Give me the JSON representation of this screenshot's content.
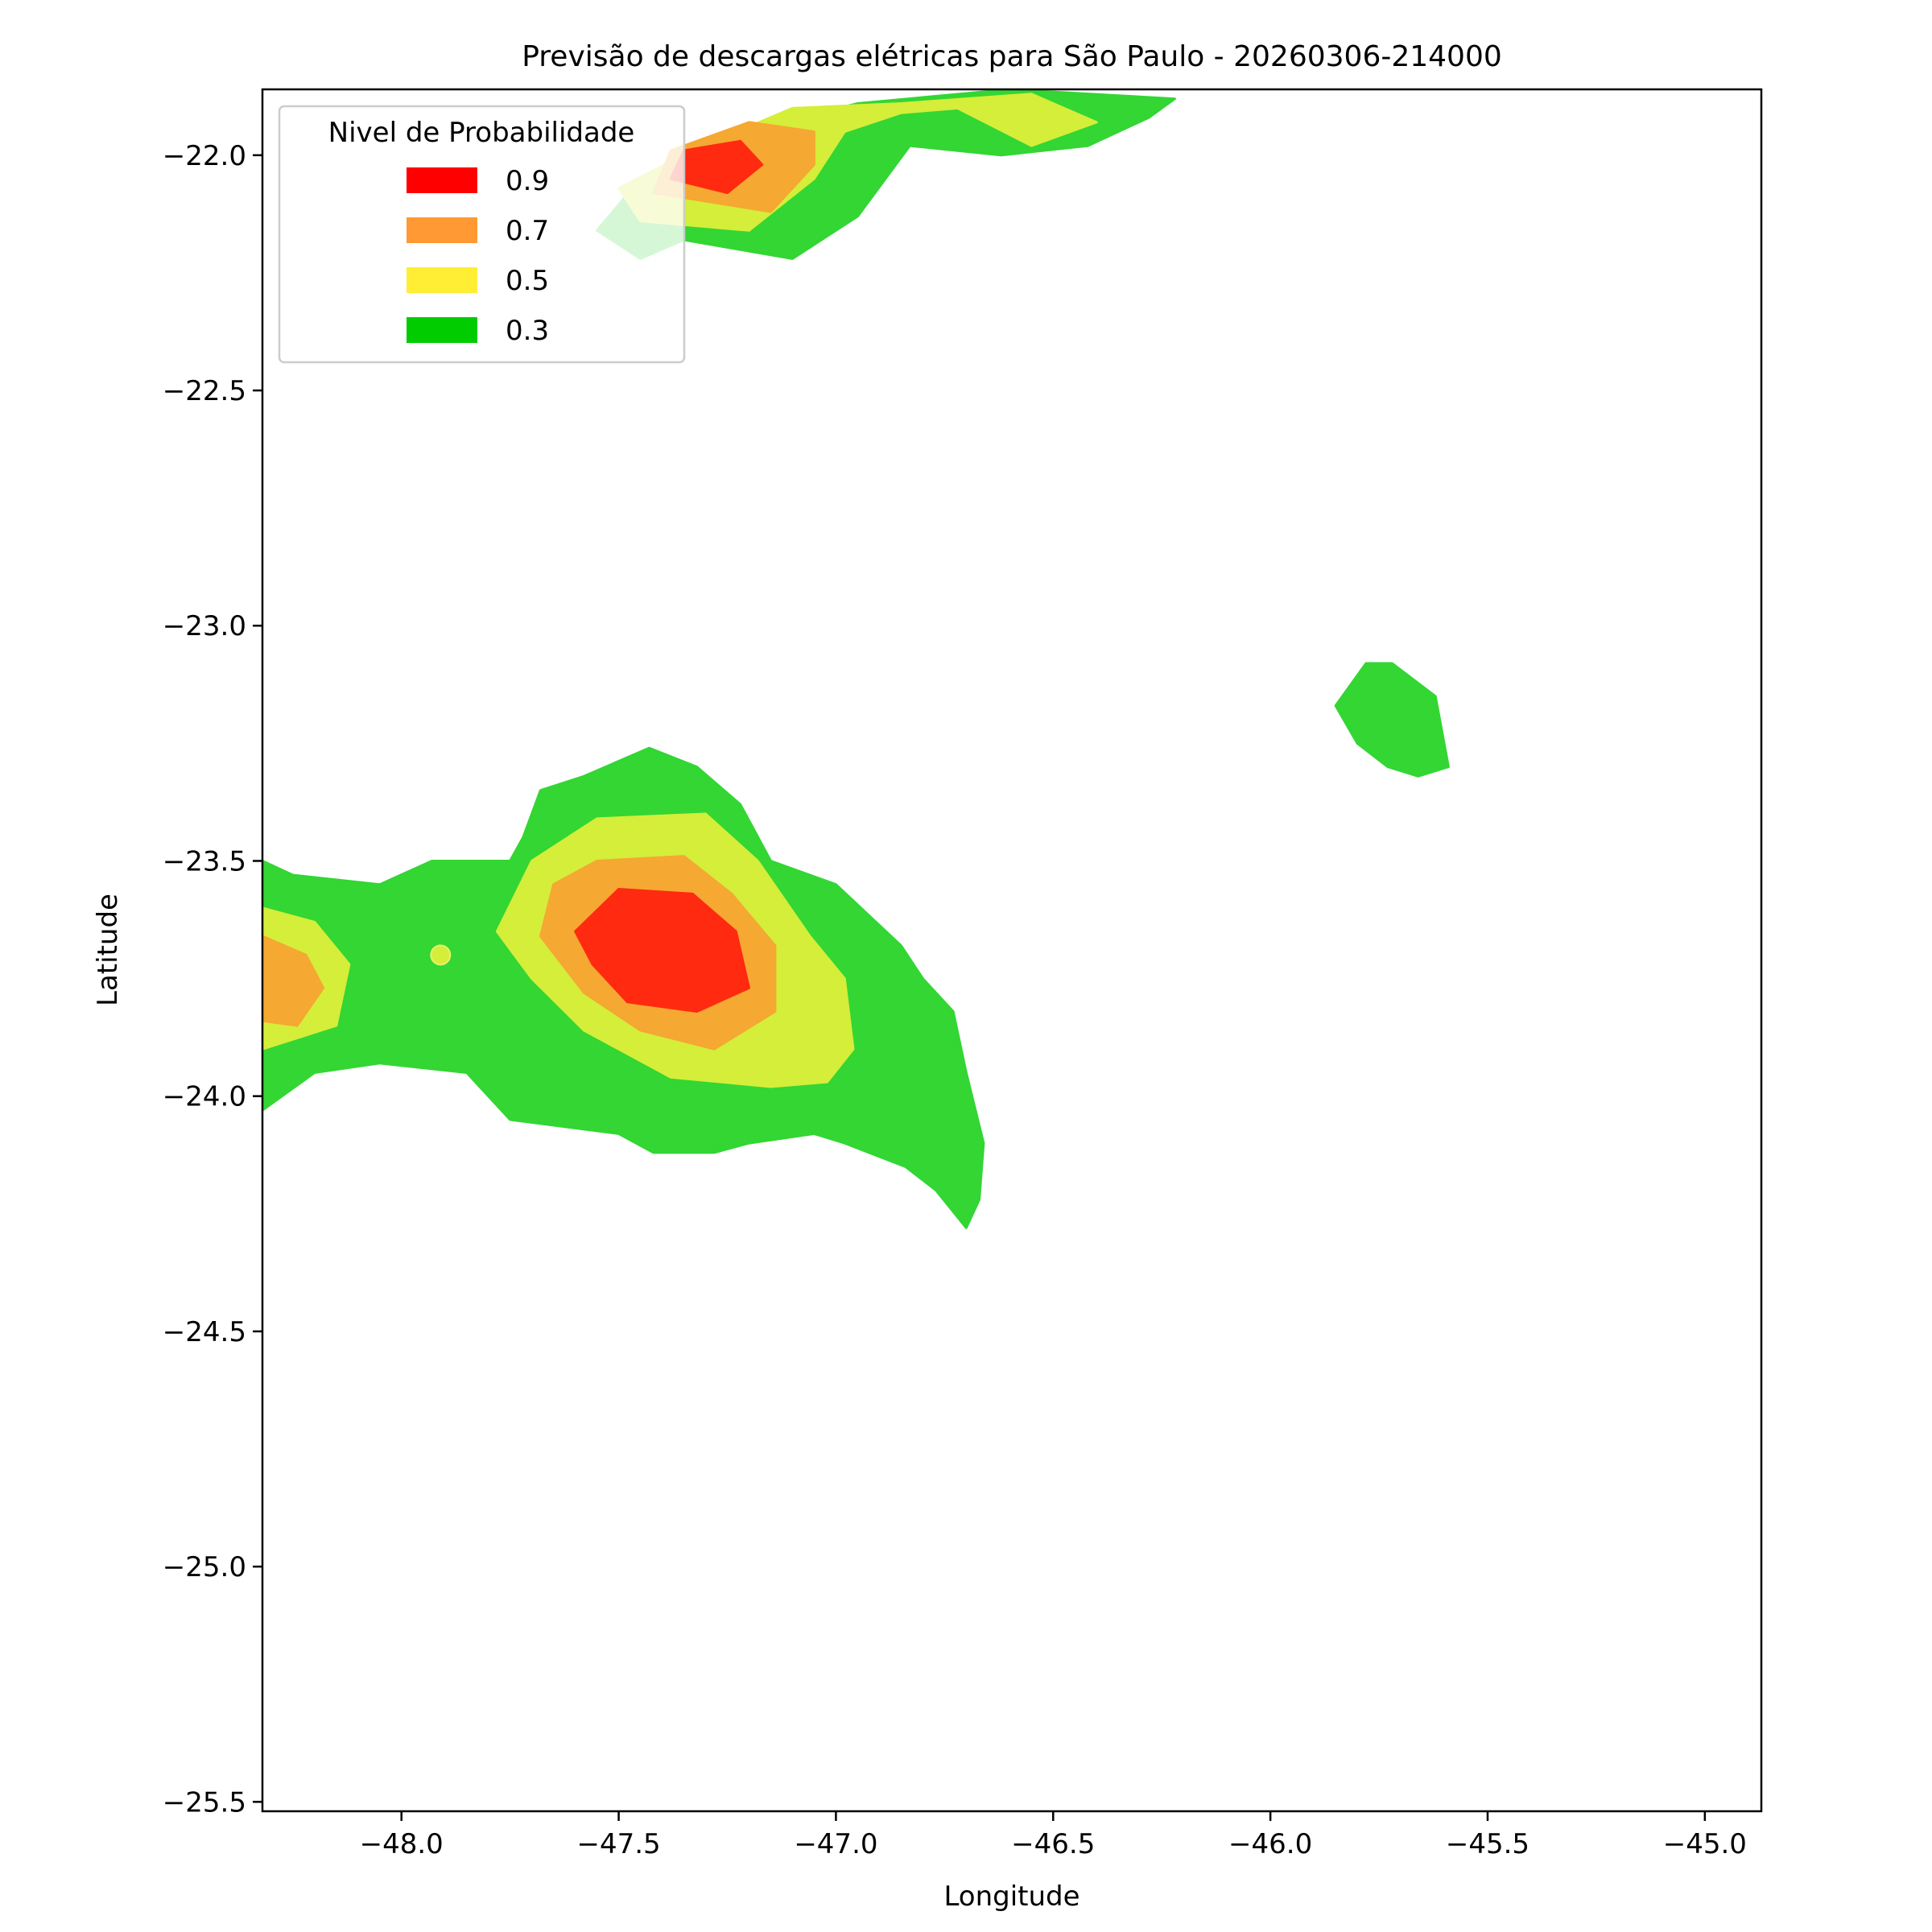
{
  "chart_data": {
    "type": "filled-contour",
    "title": "Previsão de descargas elétricas para São Paulo - 20260306-214000",
    "xlabel": "Longitude",
    "ylabel": "Latitude",
    "xlim": [
      -48.32,
      -44.87
    ],
    "ylim": [
      -25.52,
      -21.86
    ],
    "xticks": [
      -48.0,
      -47.5,
      -47.0,
      -46.5,
      -46.0,
      -45.5,
      -45.0
    ],
    "xtick_labels": [
      "−48.0",
      "−47.5",
      "−47.0",
      "−46.5",
      "−46.0",
      "−45.5",
      "−45.0"
    ],
    "yticks": [
      -22.0,
      -22.5,
      -23.0,
      -23.5,
      -24.0,
      -24.5,
      -25.0,
      -25.5
    ],
    "ytick_labels": [
      "−22.0",
      "−22.5",
      "−23.0",
      "−23.5",
      "−24.0",
      "−24.5",
      "−25.0",
      "−25.5"
    ],
    "legend": {
      "title": "Nivel de Probabilidade",
      "position": "upper-left",
      "entries": [
        {
          "label": "0.9",
          "color": "#ff0000"
        },
        {
          "label": "0.7",
          "color": "#ff9933"
        },
        {
          "label": "0.5",
          "color": "#ffee33"
        },
        {
          "label": "0.3",
          "color": "#00cc00"
        }
      ]
    },
    "fill_colors": {
      "0.3": "#33d633",
      "0.5": "#d4ee3a",
      "0.7": "#f5a832",
      "0.9": "#ff2a10"
    },
    "levels": [
      {
        "level": "0.3",
        "regions": [
          [
            [
              -48.32,
              -23.5
            ],
            [
              -48.25,
              -23.53
            ],
            [
              -48.05,
              -23.55
            ],
            [
              -47.93,
              -23.5
            ],
            [
              -47.75,
              -23.5
            ],
            [
              -47.72,
              -23.45
            ],
            [
              -47.68,
              -23.35
            ],
            [
              -47.58,
              -23.32
            ],
            [
              -47.43,
              -23.26
            ],
            [
              -47.32,
              -23.3
            ],
            [
              -47.22,
              -23.38
            ],
            [
              -47.15,
              -23.5
            ],
            [
              -47.0,
              -23.55
            ],
            [
              -46.85,
              -23.68
            ],
            [
              -46.8,
              -23.75
            ],
            [
              -46.73,
              -23.82
            ],
            [
              -46.7,
              -23.95
            ],
            [
              -46.66,
              -24.1
            ],
            [
              -46.67,
              -24.22
            ],
            [
              -46.7,
              -24.28
            ],
            [
              -46.77,
              -24.2
            ],
            [
              -46.84,
              -24.15
            ],
            [
              -46.98,
              -24.1
            ],
            [
              -47.05,
              -24.08
            ],
            [
              -47.2,
              -24.1
            ],
            [
              -47.28,
              -24.12
            ],
            [
              -47.42,
              -24.12
            ],
            [
              -47.5,
              -24.08
            ],
            [
              -47.75,
              -24.05
            ],
            [
              -47.85,
              -23.95
            ],
            [
              -48.05,
              -23.93
            ],
            [
              -48.2,
              -23.95
            ],
            [
              -48.32,
              -24.03
            ]
          ],
          [
            [
              -47.35,
              -22.18
            ],
            [
              -47.1,
              -22.22
            ],
            [
              -46.95,
              -22.13
            ],
            [
              -46.83,
              -21.98
            ],
            [
              -46.62,
              -22.0
            ],
            [
              -46.42,
              -21.98
            ],
            [
              -46.28,
              -21.92
            ],
            [
              -46.22,
              -21.88
            ],
            [
              -46.6,
              -21.86
            ],
            [
              -46.95,
              -21.89
            ],
            [
              -47.3,
              -21.97
            ],
            [
              -47.45,
              -22.05
            ],
            [
              -47.55,
              -22.16
            ],
            [
              -47.45,
              -22.22
            ]
          ],
          [
            [
              -45.72,
              -23.08
            ],
            [
              -45.62,
              -23.15
            ],
            [
              -45.59,
              -23.3
            ],
            [
              -45.66,
              -23.32
            ],
            [
              -45.73,
              -23.3
            ],
            [
              -45.8,
              -23.25
            ],
            [
              -45.85,
              -23.17
            ],
            [
              -45.78,
              -23.08
            ]
          ]
        ]
      },
      {
        "level": "0.5",
        "regions": [
          [
            [
              -48.32,
              -23.6
            ],
            [
              -48.2,
              -23.63
            ],
            [
              -48.12,
              -23.72
            ],
            [
              -48.15,
              -23.85
            ],
            [
              -48.32,
              -23.9
            ]
          ],
          [
            [
              -47.55,
              -23.41
            ],
            [
              -47.3,
              -23.4
            ],
            [
              -47.18,
              -23.5
            ],
            [
              -47.06,
              -23.66
            ],
            [
              -46.98,
              -23.75
            ],
            [
              -46.96,
              -23.9
            ],
            [
              -47.02,
              -23.97
            ],
            [
              -47.15,
              -23.98
            ],
            [
              -47.38,
              -23.96
            ],
            [
              -47.58,
              -23.86
            ],
            [
              -47.7,
              -23.75
            ],
            [
              -47.78,
              -23.65
            ],
            [
              -47.7,
              -23.5
            ]
          ],
          [
            [
              -47.45,
              -22.14
            ],
            [
              -47.2,
              -22.16
            ],
            [
              -47.05,
              -22.05
            ],
            [
              -46.98,
              -21.95
            ],
            [
              -46.85,
              -21.91
            ],
            [
              -46.72,
              -21.9
            ],
            [
              -46.55,
              -21.98
            ],
            [
              -46.4,
              -21.93
            ],
            [
              -46.55,
              -21.87
            ],
            [
              -46.85,
              -21.89
            ],
            [
              -47.1,
              -21.9
            ],
            [
              -47.33,
              -21.99
            ],
            [
              -47.5,
              -22.07
            ]
          ]
        ]
      },
      {
        "level": "0.7",
        "regions": [
          [
            [
              -48.32,
              -23.66
            ],
            [
              -48.22,
              -23.7
            ],
            [
              -48.18,
              -23.77
            ],
            [
              -48.24,
              -23.85
            ],
            [
              -48.32,
              -23.84
            ]
          ],
          [
            [
              -47.55,
              -23.5
            ],
            [
              -47.35,
              -23.49
            ],
            [
              -47.24,
              -23.57
            ],
            [
              -47.14,
              -23.68
            ],
            [
              -47.14,
              -23.82
            ],
            [
              -47.28,
              -23.9
            ],
            [
              -47.45,
              -23.86
            ],
            [
              -47.58,
              -23.78
            ],
            [
              -47.68,
              -23.66
            ],
            [
              -47.65,
              -23.55
            ]
          ],
          [
            [
              -47.42,
              -22.08
            ],
            [
              -47.15,
              -22.12
            ],
            [
              -47.05,
              -22.02
            ],
            [
              -47.05,
              -21.95
            ],
            [
              -47.2,
              -21.93
            ],
            [
              -47.38,
              -21.99
            ]
          ]
        ]
      },
      {
        "level": "0.9",
        "regions": [
          [
            [
              -47.5,
              -23.56
            ],
            [
              -47.33,
              -23.57
            ],
            [
              -47.23,
              -23.65
            ],
            [
              -47.2,
              -23.77
            ],
            [
              -47.32,
              -23.82
            ],
            [
              -47.48,
              -23.8
            ],
            [
              -47.56,
              -23.72
            ],
            [
              -47.6,
              -23.65
            ]
          ],
          [
            [
              -47.38,
              -22.05
            ],
            [
              -47.25,
              -22.08
            ],
            [
              -47.17,
              -22.02
            ],
            [
              -47.22,
              -21.97
            ],
            [
              -47.35,
              -21.99
            ]
          ]
        ]
      }
    ],
    "markers": [
      {
        "lon": -47.91,
        "lat": -23.7,
        "level": "0.5"
      }
    ]
  }
}
